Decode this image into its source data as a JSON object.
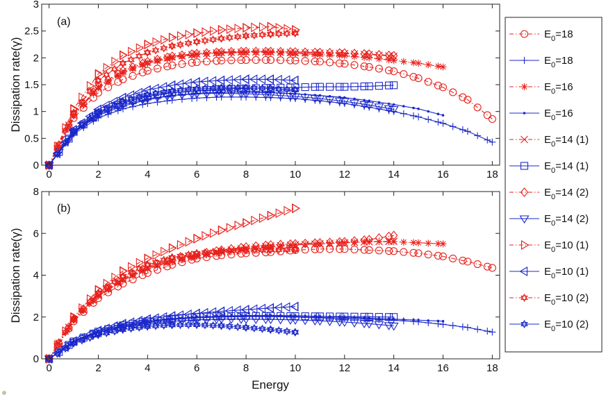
{
  "colors": {
    "red": "#e8211c",
    "blue": "#1b28c9",
    "axis": "#222222"
  },
  "chart_data": [
    {
      "type": "line",
      "panel_label": "(a)",
      "xlabel": "",
      "ylabel": "Dissipation rate(γ)",
      "xlim": [
        -0.3,
        18.3
      ],
      "ylim": [
        0,
        3
      ],
      "xticks": [
        "0",
        "2",
        "4",
        "6",
        "8",
        "10",
        "12",
        "14",
        "16",
        "18"
      ],
      "yticks": [
        "0",
        "0.5",
        "1",
        "1.5",
        "2",
        "2.5",
        "3"
      ],
      "series": [
        {
          "name": "E0=18 (red)",
          "color": "red",
          "marker": "circle",
          "dashed": true,
          "x": [
            0,
            1,
            2,
            3,
            4,
            5,
            6,
            7,
            8,
            9,
            10,
            11,
            12,
            13,
            14,
            15,
            16,
            17,
            18
          ],
          "y": [
            0,
            0.88,
            1.35,
            1.6,
            1.76,
            1.86,
            1.92,
            1.95,
            1.96,
            1.96,
            1.95,
            1.93,
            1.89,
            1.83,
            1.75,
            1.62,
            1.45,
            1.22,
            0.86
          ]
        },
        {
          "name": "E0=18 (blue)",
          "color": "blue",
          "marker": "plus",
          "dashed": false,
          "x": [
            0,
            1,
            2,
            3,
            4,
            5,
            6,
            7,
            8,
            9,
            10,
            11,
            12,
            13,
            14,
            15,
            16,
            17,
            18
          ],
          "y": [
            0,
            0.58,
            0.88,
            1.05,
            1.15,
            1.21,
            1.25,
            1.27,
            1.27,
            1.26,
            1.24,
            1.2,
            1.15,
            1.08,
            1.0,
            0.9,
            0.78,
            0.63,
            0.43
          ]
        },
        {
          "name": "E0=16 (red)",
          "color": "red",
          "marker": "star",
          "dashed": true,
          "x": [
            0,
            1,
            2,
            3,
            4,
            5,
            6,
            7,
            8,
            9,
            10,
            11,
            12,
            13,
            14,
            15,
            16
          ],
          "y": [
            0,
            0.92,
            1.44,
            1.72,
            1.9,
            2.0,
            2.06,
            2.09,
            2.1,
            2.1,
            2.08,
            2.06,
            2.04,
            2.0,
            1.95,
            1.9,
            1.83
          ]
        },
        {
          "name": "E0=16 (blue)",
          "color": "blue",
          "marker": "dot",
          "dashed": false,
          "x": [
            0,
            1,
            2,
            3,
            4,
            5,
            6,
            7,
            8,
            9,
            10,
            11,
            12,
            13,
            14,
            15,
            16
          ],
          "y": [
            0,
            0.6,
            0.93,
            1.1,
            1.22,
            1.3,
            1.34,
            1.36,
            1.36,
            1.35,
            1.33,
            1.3,
            1.26,
            1.2,
            1.13,
            1.05,
            0.93
          ]
        },
        {
          "name": "E0=14 (1) (red)",
          "color": "red",
          "marker": "x",
          "dashed": true,
          "x": [
            0,
            1,
            2,
            3,
            4,
            5,
            6,
            7,
            8,
            9,
            10,
            11,
            12,
            13,
            14
          ],
          "y": [
            0,
            0.93,
            1.46,
            1.75,
            1.92,
            2.02,
            2.07,
            2.1,
            2.11,
            2.11,
            2.1,
            2.09,
            2.08,
            2.06,
            2.03
          ]
        },
        {
          "name": "E0=14 (1) (blue)",
          "color": "blue",
          "marker": "square",
          "dashed": false,
          "x": [
            0,
            1,
            2,
            3,
            4,
            5,
            6,
            7,
            8,
            9,
            10,
            11,
            12,
            13,
            14
          ],
          "y": [
            0,
            0.62,
            0.97,
            1.16,
            1.28,
            1.35,
            1.39,
            1.42,
            1.43,
            1.44,
            1.45,
            1.46,
            1.46,
            1.47,
            1.49
          ]
        },
        {
          "name": "E0=14 (2) (red)",
          "color": "red",
          "marker": "diamond",
          "dashed": true,
          "x": [
            0,
            1,
            2,
            3,
            4,
            5,
            6,
            7,
            8,
            9,
            10,
            11,
            12,
            13,
            14
          ],
          "y": [
            0,
            0.94,
            1.47,
            1.76,
            1.93,
            2.03,
            2.08,
            2.11,
            2.12,
            2.12,
            2.11,
            2.1,
            2.09,
            2.07,
            2.04
          ]
        },
        {
          "name": "E0=14 (2) (blue)",
          "color": "blue",
          "marker": "tridown",
          "dashed": false,
          "x": [
            0,
            1,
            2,
            3,
            4,
            5,
            6,
            7,
            8,
            9,
            10,
            11,
            12,
            13,
            14
          ],
          "y": [
            0,
            0.61,
            0.95,
            1.13,
            1.24,
            1.3,
            1.33,
            1.34,
            1.33,
            1.31,
            1.28,
            1.24,
            1.19,
            1.12,
            1.04
          ]
        },
        {
          "name": "E0=10 (1) (red)",
          "color": "red",
          "marker": "triright",
          "dashed": true,
          "x": [
            0,
            1,
            2,
            3,
            4,
            5,
            6,
            7,
            8,
            9,
            10
          ],
          "y": [
            0,
            1.05,
            1.7,
            2.05,
            2.25,
            2.38,
            2.46,
            2.52,
            2.56,
            2.58,
            2.52
          ]
        },
        {
          "name": "E0=10 (1) (blue)",
          "color": "blue",
          "marker": "trileft",
          "dashed": false,
          "x": [
            0,
            1,
            2,
            3,
            4,
            5,
            6,
            7,
            8,
            9,
            10
          ],
          "y": [
            0,
            0.66,
            1.04,
            1.26,
            1.4,
            1.49,
            1.55,
            1.58,
            1.6,
            1.6,
            1.58
          ]
        },
        {
          "name": "E0=10 (2) (red)",
          "color": "red",
          "marker": "hexstar",
          "dashed": true,
          "x": [
            0,
            1,
            2,
            3,
            4,
            5,
            6,
            7,
            8,
            9,
            10
          ],
          "y": [
            0,
            0.98,
            1.58,
            1.9,
            2.1,
            2.22,
            2.3,
            2.36,
            2.41,
            2.44,
            2.46
          ]
        },
        {
          "name": "E0=10 (2) (blue)",
          "color": "blue",
          "marker": "hexstar",
          "dashed": false,
          "x": [
            0,
            1,
            2,
            3,
            4,
            5,
            6,
            7,
            8,
            9,
            10
          ],
          "y": [
            0,
            0.63,
            0.99,
            1.19,
            1.31,
            1.38,
            1.42,
            1.44,
            1.44,
            1.43,
            1.4
          ]
        }
      ]
    },
    {
      "type": "line",
      "panel_label": "(b)",
      "xlabel": "Energy",
      "ylabel": "Dissipation rate(γ)",
      "xlim": [
        -0.3,
        18.3
      ],
      "ylim": [
        0,
        8
      ],
      "xticks": [
        "0",
        "2",
        "4",
        "6",
        "8",
        "10",
        "12",
        "14",
        "16",
        "18"
      ],
      "yticks": [
        "0",
        "2",
        "4",
        "6",
        "8"
      ],
      "series": [
        {
          "name": "E0=18 (red)",
          "color": "red",
          "marker": "circle",
          "dashed": true,
          "x": [
            0,
            1,
            2,
            3,
            4,
            5,
            6,
            7,
            8,
            9,
            10,
            11,
            12,
            13,
            14,
            15,
            16,
            17,
            18
          ],
          "y": [
            0,
            1.8,
            2.9,
            3.6,
            4.1,
            4.5,
            4.8,
            4.95,
            5.05,
            5.1,
            5.2,
            5.25,
            5.25,
            5.2,
            5.15,
            5.05,
            4.9,
            4.65,
            4.35
          ]
        },
        {
          "name": "E0=18 (blue)",
          "color": "blue",
          "marker": "plus",
          "dashed": false,
          "x": [
            0,
            1,
            2,
            3,
            4,
            5,
            6,
            7,
            8,
            9,
            10,
            11,
            12,
            13,
            14,
            15,
            16,
            17,
            18
          ],
          "y": [
            0,
            0.8,
            1.25,
            1.55,
            1.75,
            1.88,
            1.96,
            2.0,
            2.02,
            2.02,
            2.0,
            1.98,
            1.95,
            1.9,
            1.85,
            1.77,
            1.65,
            1.5,
            1.28
          ]
        },
        {
          "name": "E0=16 (red)",
          "color": "red",
          "marker": "star",
          "dashed": true,
          "x": [
            0,
            1,
            2,
            3,
            4,
            5,
            6,
            7,
            8,
            9,
            10,
            11,
            12,
            13,
            14,
            15,
            16
          ],
          "y": [
            0,
            1.85,
            3.0,
            3.75,
            4.3,
            4.65,
            4.9,
            5.1,
            5.25,
            5.35,
            5.45,
            5.5,
            5.55,
            5.6,
            5.6,
            5.55,
            5.5
          ]
        },
        {
          "name": "E0=16 (blue)",
          "color": "blue",
          "marker": "dot",
          "dashed": false,
          "x": [
            0,
            1,
            2,
            3,
            4,
            5,
            6,
            7,
            8,
            9,
            10,
            11,
            12,
            13,
            14,
            15,
            16
          ],
          "y": [
            0,
            0.82,
            1.3,
            1.6,
            1.8,
            1.92,
            2.0,
            2.05,
            2.07,
            2.08,
            2.06,
            2.03,
            2.0,
            1.95,
            1.9,
            1.85,
            1.8
          ]
        },
        {
          "name": "E0=14 (1) (red)",
          "color": "red",
          "marker": "x",
          "dashed": true,
          "x": [
            0,
            1,
            2,
            3,
            4,
            5,
            6,
            7,
            8,
            9,
            10,
            11,
            12,
            13,
            14
          ],
          "y": [
            0,
            1.88,
            3.05,
            3.8,
            4.35,
            4.7,
            4.95,
            5.15,
            5.3,
            5.4,
            5.45,
            5.5,
            5.55,
            5.6,
            5.62
          ]
        },
        {
          "name": "E0=14 (1) (blue)",
          "color": "blue",
          "marker": "square",
          "dashed": false,
          "x": [
            0,
            1,
            2,
            3,
            4,
            5,
            6,
            7,
            8,
            9,
            10,
            11,
            12,
            13,
            14
          ],
          "y": [
            0,
            0.83,
            1.3,
            1.6,
            1.8,
            1.92,
            2.0,
            2.04,
            2.05,
            2.05,
            2.04,
            2.03,
            2.02,
            2.01,
            2.0
          ]
        },
        {
          "name": "E0=14 (2) (red)",
          "color": "red",
          "marker": "diamond",
          "dashed": true,
          "x": [
            0,
            1,
            2,
            3,
            4,
            5,
            6,
            7,
            8,
            9,
            10,
            11,
            12,
            13,
            14
          ],
          "y": [
            0,
            1.9,
            3.1,
            3.85,
            4.4,
            4.75,
            5.0,
            5.2,
            5.35,
            5.45,
            5.5,
            5.55,
            5.6,
            5.7,
            5.9
          ]
        },
        {
          "name": "E0=14 (2) (blue)",
          "color": "blue",
          "marker": "tridown",
          "dashed": false,
          "x": [
            0,
            1,
            2,
            3,
            4,
            5,
            6,
            7,
            8,
            9,
            10,
            11,
            12,
            13,
            14
          ],
          "y": [
            0,
            0.8,
            1.25,
            1.52,
            1.7,
            1.8,
            1.87,
            1.9,
            1.9,
            1.89,
            1.86,
            1.82,
            1.76,
            1.68,
            1.58
          ]
        },
        {
          "name": "E0=10 (1) (red)",
          "color": "red",
          "marker": "triright",
          "dashed": true,
          "x": [
            0,
            1,
            2,
            3,
            4,
            5,
            6,
            7,
            8,
            9,
            10
          ],
          "y": [
            0,
            2.0,
            3.3,
            4.2,
            4.8,
            5.3,
            5.75,
            6.15,
            6.5,
            6.85,
            7.2
          ]
        },
        {
          "name": "E0=10 (1) (blue)",
          "color": "blue",
          "marker": "trileft",
          "dashed": false,
          "x": [
            0,
            1,
            2,
            3,
            4,
            5,
            6,
            7,
            8,
            9,
            10
          ],
          "y": [
            0,
            0.85,
            1.35,
            1.68,
            1.9,
            2.05,
            2.17,
            2.27,
            2.35,
            2.43,
            2.5
          ]
        },
        {
          "name": "E0=10 (2) (red)",
          "color": "red",
          "marker": "hexstar",
          "dashed": true,
          "x": [
            0,
            1,
            2,
            3,
            4,
            5,
            6,
            7,
            8,
            9,
            10
          ],
          "y": [
            0,
            1.92,
            3.15,
            3.95,
            4.5,
            4.85,
            5.05,
            5.15,
            5.2,
            5.22,
            5.22
          ]
        },
        {
          "name": "E0=10 (2) (blue)",
          "color": "blue",
          "marker": "hexstar",
          "dashed": false,
          "x": [
            0,
            1,
            2,
            3,
            4,
            5,
            6,
            7,
            8,
            9,
            10
          ],
          "y": [
            0,
            0.75,
            1.15,
            1.4,
            1.55,
            1.62,
            1.63,
            1.58,
            1.5,
            1.4,
            1.27
          ]
        }
      ]
    }
  ],
  "legend": {
    "position": "right",
    "entries": [
      {
        "base": "E",
        "sub": "0",
        "value": "=18",
        "color": "red",
        "marker": "circle",
        "dashed": true
      },
      {
        "base": "E",
        "sub": "0",
        "value": "=18",
        "color": "blue",
        "marker": "plus",
        "dashed": false
      },
      {
        "base": "E",
        "sub": "0",
        "value": "=16",
        "color": "red",
        "marker": "star",
        "dashed": true
      },
      {
        "base": "E",
        "sub": "0",
        "value": "=16",
        "color": "blue",
        "marker": "dot",
        "dashed": false
      },
      {
        "base": "E",
        "sub": "0",
        "value": "=14 (1)",
        "color": "red",
        "marker": "x",
        "dashed": true
      },
      {
        "base": "E",
        "sub": "0",
        "value": "=14 (1)",
        "color": "blue",
        "marker": "square",
        "dashed": false
      },
      {
        "base": "E",
        "sub": "0",
        "value": "=14 (2)",
        "color": "red",
        "marker": "diamond",
        "dashed": true
      },
      {
        "base": "E",
        "sub": "0",
        "value": "=14 (2)",
        "color": "blue",
        "marker": "tridown",
        "dashed": false
      },
      {
        "base": "E",
        "sub": "0",
        "value": "=10 (1)",
        "color": "red",
        "marker": "triright",
        "dashed": true
      },
      {
        "base": "E",
        "sub": "0",
        "value": "=10 (1)",
        "color": "blue",
        "marker": "trileft",
        "dashed": false
      },
      {
        "base": "E",
        "sub": "0",
        "value": "=10 (2)",
        "color": "red",
        "marker": "hexstar",
        "dashed": true
      },
      {
        "base": "E",
        "sub": "0",
        "value": "=10 (2)",
        "color": "blue",
        "marker": "hexstar",
        "dashed": false
      }
    ]
  }
}
